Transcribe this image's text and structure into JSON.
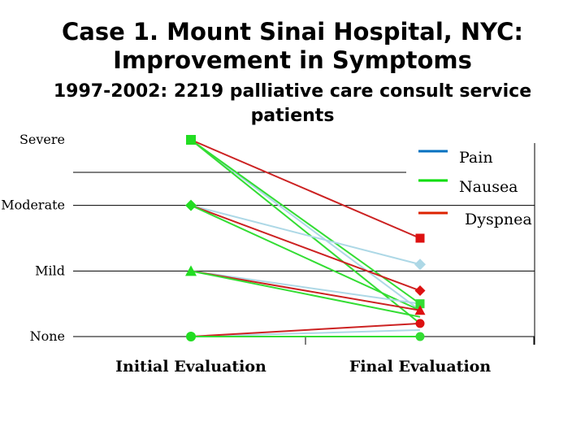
{
  "slide": {
    "title_line1": "Case 1. Mount Sinai Hospital, NYC:",
    "title_line2": "Improvement in Symptoms",
    "subtitle_line1": "1997-2002: 2219 palliative care consult service",
    "subtitle_line2": "patients"
  },
  "chart_data": {
    "type": "line",
    "categories": [
      "Initial Evaluation",
      "Final Evaluation"
    ],
    "y_levels": [
      "None",
      "Mild",
      "Moderate",
      "Severe"
    ],
    "ylim": [
      0,
      3
    ],
    "grid": true,
    "legend_position": "top-right",
    "series": [
      {
        "name": "Pain",
        "color": "#0070c0"
      },
      {
        "name": "Nausea",
        "color": "#00dd00"
      },
      {
        "name": "Dyspnea",
        "color": "#dd2200"
      }
    ],
    "trajectories": [
      {
        "initial": 3,
        "final": 0.4,
        "color": "#add8e6",
        "marker": "square"
      },
      {
        "initial": 3,
        "final": 0.5,
        "color": "#33dd33",
        "marker": "square"
      },
      {
        "initial": 3,
        "final": 1.5,
        "color": "#cc2222",
        "marker": "square"
      },
      {
        "initial": 3,
        "final": 0.2,
        "color": "#33dd33",
        "marker": "square"
      },
      {
        "initial": 2,
        "final": 1.1,
        "color": "#add8e6",
        "marker": "diamond"
      },
      {
        "initial": 2,
        "final": 0.7,
        "color": "#cc2222",
        "marker": "diamond"
      },
      {
        "initial": 2,
        "final": 0.4,
        "color": "#33dd33",
        "marker": "diamond"
      },
      {
        "initial": 1,
        "final": 0.5,
        "color": "#add8e6",
        "marker": "triangle"
      },
      {
        "initial": 1,
        "final": 0.4,
        "color": "#cc2222",
        "marker": "triangle"
      },
      {
        "initial": 1,
        "final": 0.3,
        "color": "#33dd33",
        "marker": "triangle"
      },
      {
        "initial": 0,
        "final": 0.1,
        "color": "#add8e6",
        "marker": "circle"
      },
      {
        "initial": 0,
        "final": 0.2,
        "color": "#cc2222",
        "marker": "circle"
      },
      {
        "initial": 0,
        "final": 0.0,
        "color": "#33dd33",
        "marker": "circle"
      }
    ],
    "final_markers": [
      {
        "value": 1.5,
        "color": "#dd1111",
        "marker": "square"
      },
      {
        "value": 1.1,
        "color": "#add8e6",
        "marker": "diamond"
      },
      {
        "value": 0.7,
        "color": "#dd1111",
        "marker": "diamond"
      },
      {
        "value": 0.5,
        "color": "#33dd33",
        "marker": "square"
      },
      {
        "value": 0.4,
        "color": "#dd1111",
        "marker": "triangle"
      },
      {
        "value": 0.2,
        "color": "#dd1111",
        "marker": "circle"
      },
      {
        "value": 0.0,
        "color": "#33dd33",
        "marker": "circle"
      }
    ]
  }
}
